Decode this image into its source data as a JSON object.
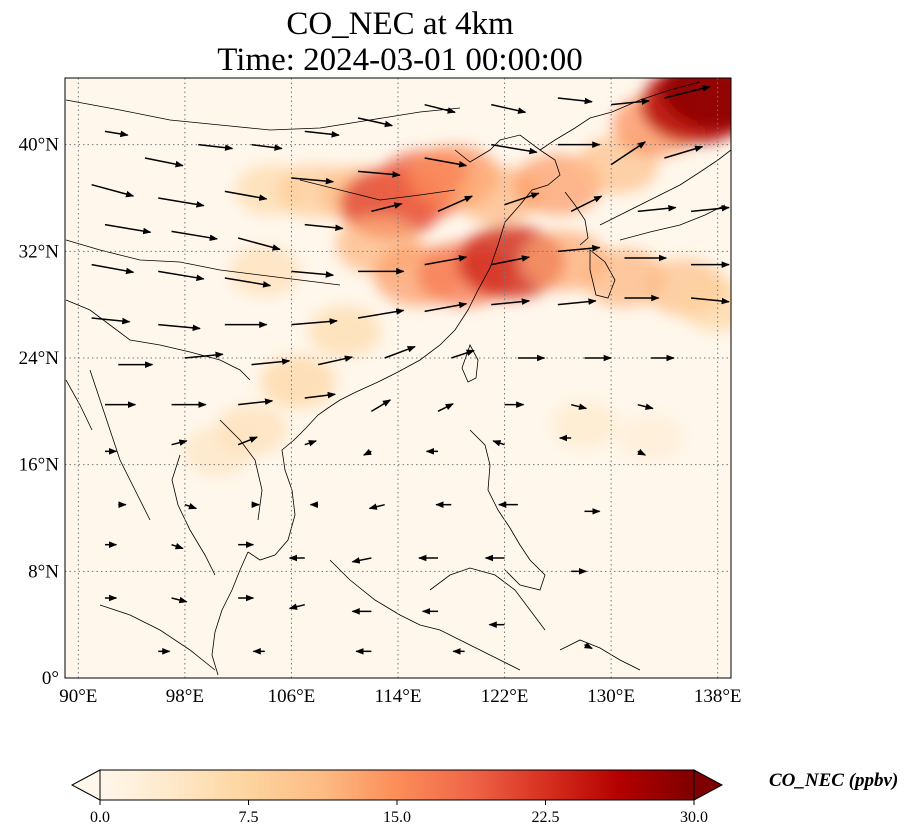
{
  "title": "CO_NEC at 4km",
  "subtitle": "Time: 2024-03-01 00:00:00",
  "map": {
    "projection": "PlateCarree",
    "extent_lon": [
      89,
      139
    ],
    "extent_lat": [
      0,
      45
    ],
    "lat_ticks": [
      {
        "value": 40,
        "label": "40°N"
      },
      {
        "value": 32,
        "label": "32°N"
      },
      {
        "value": 24,
        "label": "24°N"
      },
      {
        "value": 16,
        "label": "16°N"
      },
      {
        "value": 8,
        "label": "8°N"
      },
      {
        "value": 0,
        "label": "0°"
      }
    ],
    "lon_ticks": [
      {
        "value": 90,
        "label": "90°E"
      },
      {
        "value": 98,
        "label": "98°E"
      },
      {
        "value": 106,
        "label": "106°E"
      },
      {
        "value": 114,
        "label": "114°E"
      },
      {
        "value": 122,
        "label": "122°E"
      },
      {
        "value": 130,
        "label": "130°E"
      },
      {
        "value": 138,
        "label": "138°E"
      }
    ],
    "gridlines": "dotted"
  },
  "colorbar": {
    "label": "CO_NEC (ppbv)",
    "min": 0.0,
    "max": 30.0,
    "ticks": [
      "0.0",
      "7.5",
      "15.0",
      "22.5",
      "30.0"
    ],
    "colormap": "OrRd",
    "extend": "both",
    "colors": [
      "#fff7ec",
      "#fee8c8",
      "#fdd49e",
      "#fdbb84",
      "#fc8d59",
      "#ef6548",
      "#d7301f",
      "#b30000",
      "#7f0000"
    ]
  },
  "plumes": [
    {
      "lon": 104.5,
      "lat": 36.6,
      "value": 7
    },
    {
      "lon": 107.8,
      "lat": 36.5,
      "value": 9
    },
    {
      "lon": 111.0,
      "lat": 36.3,
      "value": 11
    },
    {
      "lon": 113.5,
      "lat": 35.6,
      "value": 21
    },
    {
      "lon": 116.0,
      "lat": 37.0,
      "value": 19
    },
    {
      "lon": 118.2,
      "lat": 37.6,
      "value": 15
    },
    {
      "lon": 121.5,
      "lat": 36.2,
      "value": 12
    },
    {
      "lon": 126.0,
      "lat": 37.0,
      "value": 14
    },
    {
      "lon": 130.5,
      "lat": 38.5,
      "value": 11
    },
    {
      "lon": 133.5,
      "lat": 41.5,
      "value": 15
    },
    {
      "lon": 136.5,
      "lat": 43.0,
      "value": 26
    },
    {
      "lon": 138.3,
      "lat": 44.2,
      "value": 29
    },
    {
      "lon": 112.5,
      "lat": 32.5,
      "value": 12
    },
    {
      "lon": 115.5,
      "lat": 30.2,
      "value": 14
    },
    {
      "lon": 119.0,
      "lat": 30.3,
      "value": 17
    },
    {
      "lon": 122.5,
      "lat": 31.2,
      "value": 23
    },
    {
      "lon": 126.5,
      "lat": 31.3,
      "value": 13
    },
    {
      "lon": 131.0,
      "lat": 30.0,
      "value": 12
    },
    {
      "lon": 135.5,
      "lat": 29.3,
      "value": 11
    },
    {
      "lon": 138.0,
      "lat": 28.0,
      "value": 8
    },
    {
      "lon": 104.0,
      "lat": 30.5,
      "value": 6
    },
    {
      "lon": 110.0,
      "lat": 26.0,
      "value": 7
    },
    {
      "lon": 106.5,
      "lat": 22.2,
      "value": 8
    },
    {
      "lon": 103.0,
      "lat": 18.6,
      "value": 6
    },
    {
      "lon": 100.5,
      "lat": 17.0,
      "value": 5
    },
    {
      "lon": 128.0,
      "lat": 19.0,
      "value": 4
    },
    {
      "lon": 133.0,
      "lat": 18.0,
      "value": 3
    }
  ],
  "wind_vectors": [
    {
      "lon": 92,
      "lat": 41,
      "u": 6,
      "v": -1
    },
    {
      "lon": 95,
      "lat": 39,
      "u": 10,
      "v": -2
    },
    {
      "lon": 99,
      "lat": 40,
      "u": 9,
      "v": -1
    },
    {
      "lon": 103,
      "lat": 40,
      "u": 8,
      "v": -1
    },
    {
      "lon": 107,
      "lat": 41,
      "u": 9,
      "v": -1
    },
    {
      "lon": 111,
      "lat": 42,
      "u": 9,
      "v": -2
    },
    {
      "lon": 116,
      "lat": 43,
      "u": 8,
      "v": -2
    },
    {
      "lon": 121,
      "lat": 43,
      "u": 9,
      "v": -2
    },
    {
      "lon": 126,
      "lat": 43.5,
      "u": 9,
      "v": -1
    },
    {
      "lon": 130,
      "lat": 43,
      "u": 10,
      "v": 1
    },
    {
      "lon": 134,
      "lat": 43.5,
      "u": 12,
      "v": 3
    },
    {
      "lon": 91,
      "lat": 37,
      "u": 11,
      "v": -3
    },
    {
      "lon": 96,
      "lat": 36,
      "u": 12,
      "v": -2
    },
    {
      "lon": 101,
      "lat": 36.5,
      "u": 11,
      "v": -2
    },
    {
      "lon": 106,
      "lat": 37.5,
      "u": 11,
      "v": -1
    },
    {
      "lon": 111,
      "lat": 38,
      "u": 11,
      "v": -1
    },
    {
      "lon": 116,
      "lat": 39,
      "u": 11,
      "v": -2
    },
    {
      "lon": 121,
      "lat": 40,
      "u": 12,
      "v": -2
    },
    {
      "lon": 126,
      "lat": 40,
      "u": 11,
      "v": 0
    },
    {
      "lon": 130,
      "lat": 38.5,
      "u": 9,
      "v": 6
    },
    {
      "lon": 134,
      "lat": 39,
      "u": 10,
      "v": 3
    },
    {
      "lon": 92,
      "lat": 34,
      "u": 12,
      "v": -2
    },
    {
      "lon": 97,
      "lat": 33.5,
      "u": 12,
      "v": -2
    },
    {
      "lon": 102,
      "lat": 33,
      "u": 11,
      "v": -3
    },
    {
      "lon": 107,
      "lat": 34,
      "u": 10,
      "v": -1
    },
    {
      "lon": 112,
      "lat": 35,
      "u": 8,
      "v": 2
    },
    {
      "lon": 117,
      "lat": 35,
      "u": 9,
      "v": 4
    },
    {
      "lon": 122,
      "lat": 35.5,
      "u": 9,
      "v": 3
    },
    {
      "lon": 127,
      "lat": 35,
      "u": 8,
      "v": 4
    },
    {
      "lon": 132,
      "lat": 35,
      "u": 10,
      "v": 1
    },
    {
      "lon": 136,
      "lat": 35,
      "u": 10,
      "v": 1
    },
    {
      "lon": 91,
      "lat": 31,
      "u": 11,
      "v": -2
    },
    {
      "lon": 96,
      "lat": 30.5,
      "u": 12,
      "v": -2
    },
    {
      "lon": 101,
      "lat": 30,
      "u": 12,
      "v": -2
    },
    {
      "lon": 106,
      "lat": 30.5,
      "u": 11,
      "v": -1
    },
    {
      "lon": 111,
      "lat": 30.5,
      "u": 12,
      "v": 0
    },
    {
      "lon": 116,
      "lat": 31,
      "u": 11,
      "v": 2
    },
    {
      "lon": 121,
      "lat": 31,
      "u": 10,
      "v": 2
    },
    {
      "lon": 126,
      "lat": 32,
      "u": 11,
      "v": 1
    },
    {
      "lon": 131,
      "lat": 31.5,
      "u": 11,
      "v": 0
    },
    {
      "lon": 136,
      "lat": 31,
      "u": 10,
      "v": 0
    },
    {
      "lon": 91,
      "lat": 27,
      "u": 10,
      "v": -1
    },
    {
      "lon": 96,
      "lat": 26.5,
      "u": 11,
      "v": -1
    },
    {
      "lon": 101,
      "lat": 26.5,
      "u": 11,
      "v": 0
    },
    {
      "lon": 106,
      "lat": 26.5,
      "u": 12,
      "v": 1
    },
    {
      "lon": 111,
      "lat": 27,
      "u": 12,
      "v": 2
    },
    {
      "lon": 116,
      "lat": 27.5,
      "u": 11,
      "v": 2
    },
    {
      "lon": 121,
      "lat": 28,
      "u": 10,
      "v": 1
    },
    {
      "lon": 126,
      "lat": 28,
      "u": 10,
      "v": 1
    },
    {
      "lon": 131,
      "lat": 28.5,
      "u": 9,
      "v": 0
    },
    {
      "lon": 136,
      "lat": 28.5,
      "u": 10,
      "v": -1
    },
    {
      "lon": 93,
      "lat": 23.5,
      "u": 9,
      "v": 0
    },
    {
      "lon": 98,
      "lat": 24,
      "u": 10,
      "v": 1
    },
    {
      "lon": 103,
      "lat": 23.5,
      "u": 10,
      "v": 1
    },
    {
      "lon": 108,
      "lat": 23.5,
      "u": 9,
      "v": 2
    },
    {
      "lon": 113,
      "lat": 24,
      "u": 8,
      "v": 3
    },
    {
      "lon": 118,
      "lat": 24,
      "u": 6,
      "v": 2
    },
    {
      "lon": 123,
      "lat": 24,
      "u": 7,
      "v": 0
    },
    {
      "lon": 128,
      "lat": 24,
      "u": 7,
      "v": 0
    },
    {
      "lon": 133,
      "lat": 24,
      "u": 6,
      "v": 0
    },
    {
      "lon": 92,
      "lat": 20.5,
      "u": 8,
      "v": 0
    },
    {
      "lon": 97,
      "lat": 20.5,
      "u": 9,
      "v": 0
    },
    {
      "lon": 102,
      "lat": 20.5,
      "u": 9,
      "v": 1
    },
    {
      "lon": 107,
      "lat": 21,
      "u": 8,
      "v": 1
    },
    {
      "lon": 112,
      "lat": 20,
      "u": 5,
      "v": 3
    },
    {
      "lon": 117,
      "lat": 20,
      "u": 4,
      "v": 2
    },
    {
      "lon": 122,
      "lat": 20.5,
      "u": 5,
      "v": 0
    },
    {
      "lon": 127,
      "lat": 20.5,
      "u": 4,
      "v": -1
    },
    {
      "lon": 132,
      "lat": 20.5,
      "u": 4,
      "v": -1
    },
    {
      "lon": 92,
      "lat": 17,
      "u": 3,
      "v": 0
    },
    {
      "lon": 97,
      "lat": 17.5,
      "u": 4,
      "v": 1
    },
    {
      "lon": 102,
      "lat": 17.5,
      "u": 5,
      "v": 2
    },
    {
      "lon": 107,
      "lat": 17.5,
      "u": 3,
      "v": 1
    },
    {
      "lon": 112,
      "lat": 17,
      "u": -2,
      "v": -1
    },
    {
      "lon": 117,
      "lat": 17,
      "u": -3,
      "v": 0
    },
    {
      "lon": 122,
      "lat": 17.5,
      "u": -3,
      "v": 1
    },
    {
      "lon": 127,
      "lat": 18,
      "u": -3,
      "v": 0
    },
    {
      "lon": 132,
      "lat": 17,
      "u": 2,
      "v": -1
    },
    {
      "lon": 93,
      "lat": 13,
      "u": 2,
      "v": 0
    },
    {
      "lon": 98,
      "lat": 13,
      "u": 3,
      "v": -1
    },
    {
      "lon": 103,
      "lat": 13,
      "u": 2,
      "v": 0
    },
    {
      "lon": 108,
      "lat": 13,
      "u": -2,
      "v": 0
    },
    {
      "lon": 113,
      "lat": 13,
      "u": -4,
      "v": -1
    },
    {
      "lon": 118,
      "lat": 13,
      "u": -4,
      "v": 0
    },
    {
      "lon": 123,
      "lat": 13,
      "u": -5,
      "v": 0
    },
    {
      "lon": 128,
      "lat": 12.5,
      "u": 4,
      "v": 0
    },
    {
      "lon": 92,
      "lat": 10,
      "u": 3,
      "v": 0
    },
    {
      "lon": 97,
      "lat": 10,
      "u": 3,
      "v": -1
    },
    {
      "lon": 102,
      "lat": 10,
      "u": 4,
      "v": 0
    },
    {
      "lon": 107,
      "lat": 9,
      "u": -4,
      "v": 0
    },
    {
      "lon": 112,
      "lat": 9,
      "u": -5,
      "v": -1
    },
    {
      "lon": 117,
      "lat": 9,
      "u": -5,
      "v": 0
    },
    {
      "lon": 122,
      "lat": 9,
      "u": -5,
      "v": 0
    },
    {
      "lon": 127,
      "lat": 8,
      "u": 4,
      "v": 0
    },
    {
      "lon": 92,
      "lat": 6,
      "u": 3,
      "v": 0
    },
    {
      "lon": 97,
      "lat": 6,
      "u": 4,
      "v": -1
    },
    {
      "lon": 102,
      "lat": 6,
      "u": 4,
      "v": 0
    },
    {
      "lon": 107,
      "lat": 5.5,
      "u": -4,
      "v": -1
    },
    {
      "lon": 112,
      "lat": 5,
      "u": -5,
      "v": 0
    },
    {
      "lon": 117,
      "lat": 5,
      "u": -4,
      "v": 0
    },
    {
      "lon": 122,
      "lat": 4,
      "u": -4,
      "v": 0
    },
    {
      "lon": 128,
      "lat": 2.5,
      "u": 2,
      "v": -1
    },
    {
      "lon": 96,
      "lat": 2,
      "u": 3,
      "v": 0
    },
    {
      "lon": 104,
      "lat": 2,
      "u": -3,
      "v": 0
    },
    {
      "lon": 112,
      "lat": 2,
      "u": -4,
      "v": 0
    },
    {
      "lon": 119,
      "lat": 2,
      "u": -3,
      "v": 0
    }
  ]
}
